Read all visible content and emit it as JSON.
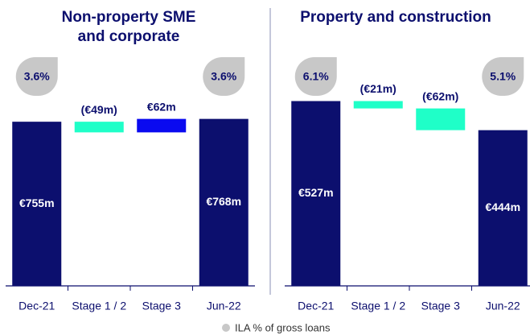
{
  "chart_data": [
    {
      "type": "waterfall",
      "title": [
        "Non-property SME",
        "and corporate"
      ],
      "categories": [
        "Dec-21",
        "Stage 1 / 2",
        "Stage 3",
        "Jun-22"
      ],
      "values": [
        755,
        -49,
        62,
        768
      ],
      "value_labels": [
        "€755m",
        "(€49m)",
        "€62m",
        "€768m"
      ],
      "colors": [
        "#0c0f6e",
        "#1fffc8",
        "#0a0af0",
        "#0c0f6e"
      ],
      "ila_values": [
        3.6,
        null,
        null,
        3.6
      ],
      "ila_labels": [
        "3.6%",
        null,
        null,
        "3.6%"
      ],
      "ylim": [
        0,
        1000
      ]
    },
    {
      "type": "waterfall",
      "title": [
        "Property and construction"
      ],
      "categories": [
        "Dec-21",
        "Stage 1 / 2",
        "Stage 3",
        "Jun-22"
      ],
      "values": [
        527,
        -21,
        -62,
        444
      ],
      "value_labels": [
        "€527m",
        "(€21m)",
        "(€62m)",
        "€444m"
      ],
      "colors": [
        "#0c0f6e",
        "#1fffc8",
        "#1fffc8",
        "#0c0f6e"
      ],
      "ila_values": [
        6.1,
        null,
        null,
        5.1
      ],
      "ila_labels": [
        "6.1%",
        null,
        null,
        "5.1%"
      ],
      "ylim": [
        0,
        620
      ]
    }
  ],
  "legend": "ILA % of gross loans"
}
